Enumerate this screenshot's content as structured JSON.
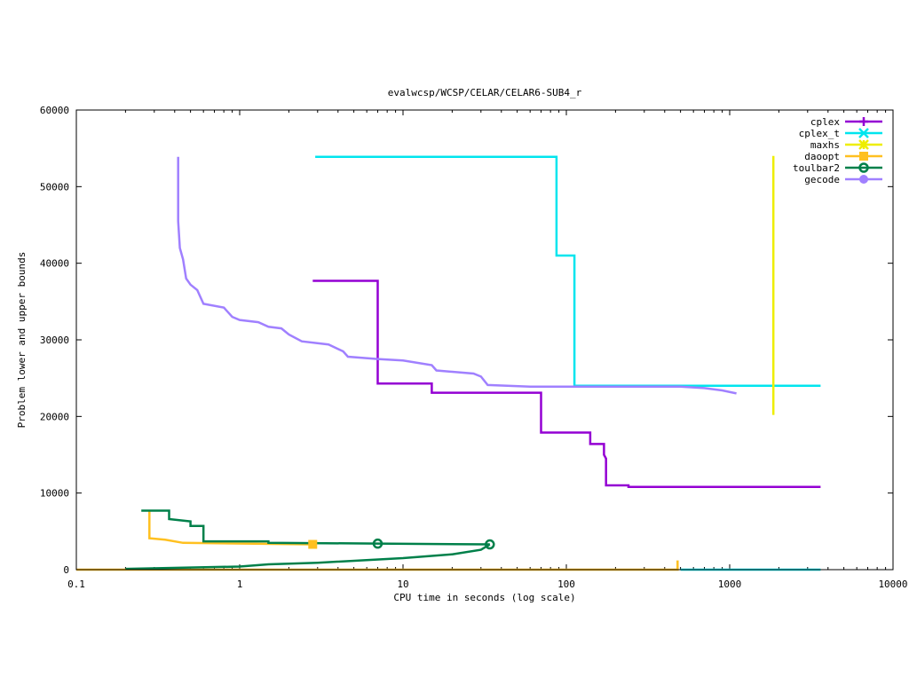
{
  "chart_data": {
    "type": "line",
    "title": "evalwcsp/WCSP/CELAR/CELAR6-SUB4_r",
    "xlabel": "CPU time in seconds (log scale)",
    "ylabel": "Problem lower and upper bounds",
    "xscale": "log",
    "xlim": [
      0.1,
      10000
    ],
    "ylim": [
      0,
      60000
    ],
    "x_ticks": [
      {
        "value": 0.1,
        "label": "0.1"
      },
      {
        "value": 1,
        "label": "1"
      },
      {
        "value": 10,
        "label": "10"
      },
      {
        "value": 100,
        "label": "100"
      },
      {
        "value": 1000,
        "label": "1000"
      },
      {
        "value": 10000,
        "label": "10000"
      }
    ],
    "y_ticks": [
      {
        "value": 0,
        "label": "0"
      },
      {
        "value": 10000,
        "label": "10000"
      },
      {
        "value": 20000,
        "label": "20000"
      },
      {
        "value": 30000,
        "label": "30000"
      },
      {
        "value": 40000,
        "label": "40000"
      },
      {
        "value": 50000,
        "label": "50000"
      },
      {
        "value": 60000,
        "label": "60000"
      }
    ],
    "grid": false,
    "legend_position": "top-right",
    "series": [
      {
        "name": "cplex",
        "color": "#9400d3",
        "marker": "plus",
        "lines": [
          [
            [
              2.8,
              37700
            ],
            [
              7.0,
              37700
            ],
            [
              7.0,
              24300
            ],
            [
              15,
              24300
            ],
            [
              15,
              23100
            ],
            [
              70,
              23100
            ],
            [
              70,
              17900
            ],
            [
              140,
              17900
            ],
            [
              140,
              16400
            ],
            [
              170,
              16400
            ],
            [
              170,
              15000
            ],
            [
              175,
              14500
            ],
            [
              175,
              11000
            ],
            [
              240,
              11000
            ],
            [
              240,
              10800
            ],
            [
              3600,
              10800
            ]
          ]
        ]
      },
      {
        "name": "cplex_t",
        "color": "#00e5ee",
        "marker": "x",
        "lines": [
          [
            [
              2.9,
              53900
            ],
            [
              87,
              53900
            ],
            [
              87,
              41000
            ],
            [
              112,
              41000
            ],
            [
              112,
              24000
            ],
            [
              3600,
              24000
            ]
          ],
          [
            [
              500,
              0
            ],
            [
              3600,
              0
            ]
          ]
        ]
      },
      {
        "name": "maxhs",
        "color": "#eeee00",
        "marker": "star",
        "lines": [
          [
            [
              1850,
              54000
            ],
            [
              1850,
              20200
            ]
          ]
        ]
      },
      {
        "name": "daoopt",
        "color": "#ffc020",
        "marker": "square",
        "lines": [
          [
            [
              0.28,
              7600
            ],
            [
              0.28,
              4100
            ],
            [
              0.35,
              3900
            ],
            [
              0.45,
              3500
            ],
            [
              2.8,
              3300
            ]
          ],
          [
            [
              0.1,
              0
            ],
            [
              480,
              0
            ],
            [
              480,
              1200
            ]
          ]
        ],
        "points": [
          [
            2.8,
            3300
          ]
        ]
      },
      {
        "name": "toulbar2",
        "color": "#00804a",
        "marker": "circle-open",
        "lines": [
          [
            [
              0.25,
              7700
            ],
            [
              0.37,
              7700
            ],
            [
              0.37,
              6600
            ],
            [
              0.5,
              6300
            ],
            [
              0.5,
              5700
            ],
            [
              0.6,
              5700
            ],
            [
              0.6,
              3700
            ],
            [
              1.5,
              3700
            ],
            [
              1.5,
              3500
            ],
            [
              7,
              3400
            ],
            [
              34,
              3300
            ]
          ],
          [
            [
              0.2,
              100
            ],
            [
              1,
              400
            ],
            [
              1.5,
              700
            ],
            [
              3,
              900
            ],
            [
              10,
              1500
            ],
            [
              20,
              2000
            ],
            [
              30,
              2600
            ],
            [
              34,
              3300
            ]
          ]
        ],
        "points": [
          [
            7,
            3400
          ],
          [
            34,
            3300
          ]
        ]
      },
      {
        "name": "gecode",
        "color": "#a080ff",
        "marker": "circle-filled",
        "lines": [
          [
            [
              0.42,
              53900
            ],
            [
              0.42,
              45500
            ],
            [
              0.43,
              42000
            ],
            [
              0.45,
              40500
            ],
            [
              0.47,
              38000
            ],
            [
              0.5,
              37200
            ],
            [
              0.55,
              36500
            ],
            [
              0.6,
              34700
            ],
            [
              0.8,
              34200
            ],
            [
              0.9,
              33000
            ],
            [
              1.0,
              32600
            ],
            [
              1.3,
              32300
            ],
            [
              1.5,
              31700
            ],
            [
              1.8,
              31500
            ],
            [
              2.0,
              30700
            ],
            [
              2.4,
              29800
            ],
            [
              3.5,
              29400
            ],
            [
              4.3,
              28500
            ],
            [
              4.6,
              27800
            ],
            [
              7,
              27500
            ],
            [
              10,
              27300
            ],
            [
              15,
              26700
            ],
            [
              16,
              26000
            ],
            [
              27,
              25600
            ],
            [
              30,
              25200
            ],
            [
              33,
              24100
            ],
            [
              60,
              23900
            ],
            [
              500,
              23900
            ],
            [
              700,
              23700
            ],
            [
              900,
              23400
            ],
            [
              1100,
              23000
            ]
          ]
        ]
      }
    ]
  }
}
